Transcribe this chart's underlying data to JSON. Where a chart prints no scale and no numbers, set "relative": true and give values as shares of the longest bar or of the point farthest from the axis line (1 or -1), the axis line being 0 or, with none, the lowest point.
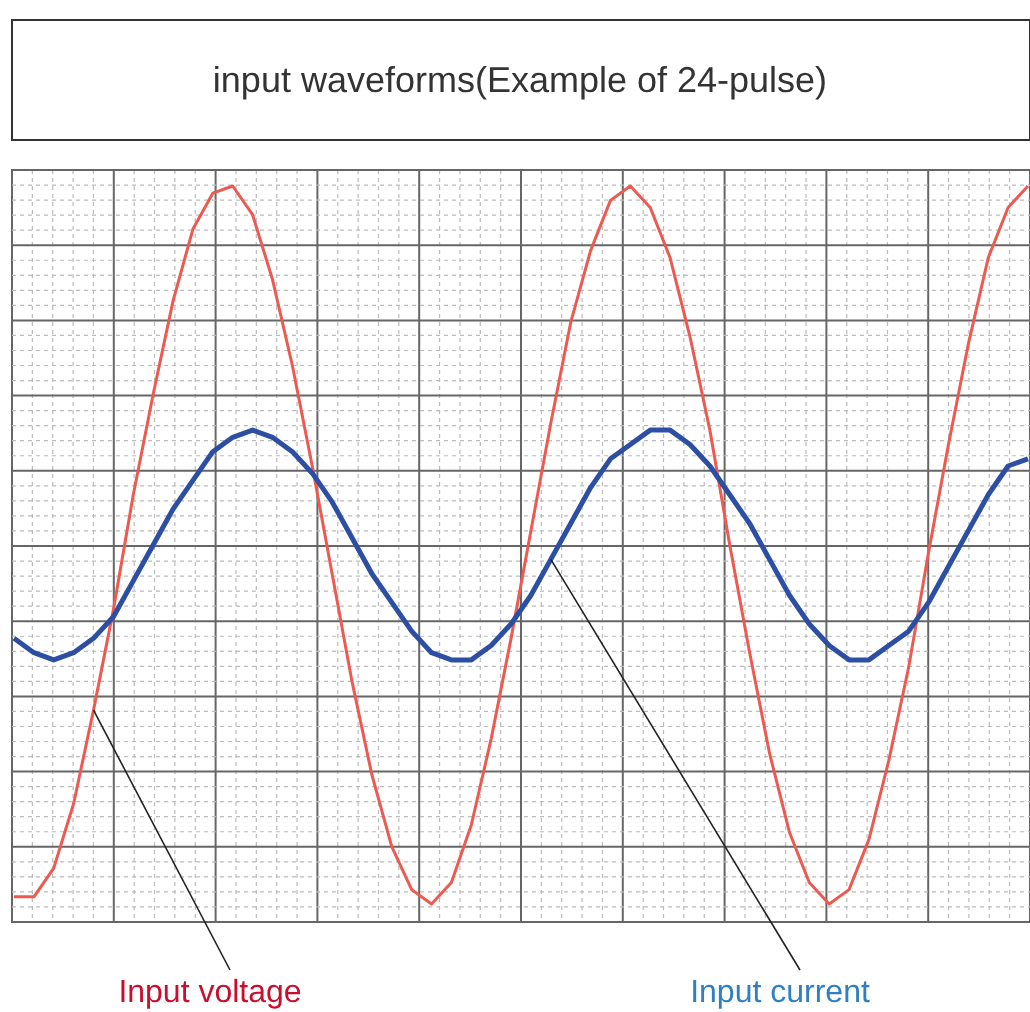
{
  "chart_data": {
    "type": "line",
    "title": "input waveforms(Example of 24-pulse)",
    "relative": true,
    "grid": true,
    "marker": "none",
    "line_style": "solid",
    "categories": [
      null,
      null,
      null,
      null,
      null,
      null,
      null,
      null,
      null,
      null,
      null,
      null,
      null,
      null,
      null,
      null,
      null,
      null,
      null,
      null,
      null,
      null,
      null,
      null,
      null,
      null,
      null,
      null,
      null,
      null,
      null,
      null,
      null,
      null,
      null,
      null,
      null,
      null,
      null,
      null,
      null,
      null,
      null,
      null,
      null,
      null,
      null,
      null,
      null,
      null,
      null,
      null
    ],
    "series": [
      {
        "color": "#ec5a52",
        "values": [
          0.01,
          0.01,
          0.05,
          0.14,
          0.27,
          0.41,
          0.57,
          0.71,
          0.84,
          0.94,
          0.99,
          1.0,
          0.96,
          0.87,
          0.75,
          0.61,
          0.46,
          0.31,
          0.18,
          0.08,
          0.02,
          0.0,
          0.03,
          0.11,
          0.23,
          0.37,
          0.52,
          0.67,
          0.81,
          0.91,
          0.98,
          1.0,
          0.97,
          0.9,
          0.79,
          0.66,
          0.5,
          0.35,
          0.21,
          0.1,
          0.03,
          0.0,
          0.02,
          0.09,
          0.2,
          0.33,
          0.49,
          0.64,
          0.78,
          0.9,
          0.97,
          1.0
        ]
      },
      {
        "color": "#2d4fa3",
        "values": [
          0.37,
          0.35,
          0.34,
          0.35,
          0.37,
          0.4,
          0.45,
          0.5,
          0.55,
          0.59,
          0.63,
          0.65,
          0.66,
          0.65,
          0.63,
          0.6,
          0.56,
          0.51,
          0.46,
          0.42,
          0.38,
          0.35,
          0.34,
          0.34,
          0.36,
          0.39,
          0.43,
          0.48,
          0.53,
          0.58,
          0.62,
          0.64,
          0.66,
          0.66,
          0.64,
          0.61,
          0.57,
          0.53,
          0.48,
          0.43,
          0.39,
          0.36,
          0.34,
          0.34,
          0.36,
          0.38,
          0.42,
          0.47,
          0.52,
          0.57,
          0.61,
          0.62
        ]
      }
    ],
    "annotations": [
      "Input voltage",
      "Input current"
    ]
  }
}
